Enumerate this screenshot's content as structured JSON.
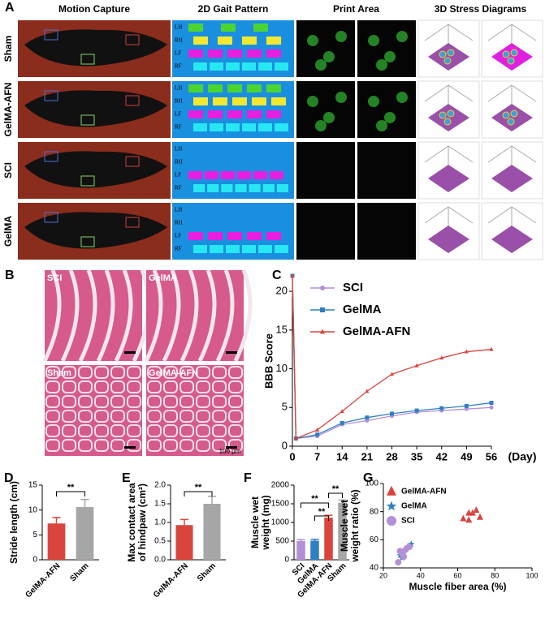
{
  "panel_a": {
    "label": "A",
    "columns": [
      "Motion Capture",
      "2D Gait Pattern",
      "Print Area",
      "3D Stress Diagrams"
    ],
    "rows": [
      "Sham",
      "GelMA-AFN",
      "SCI",
      "GelMA"
    ],
    "gait_limbs": [
      "LH",
      "RH",
      "LF",
      "RF"
    ]
  },
  "panel_b": {
    "label": "B",
    "images": [
      "SCI",
      "GelMA",
      "Sham",
      "GelMA-AFN"
    ],
    "scale_bar": "100 μm"
  },
  "chart_data": [
    {
      "type": "line",
      "panel": "C",
      "ylabel": "BBB Score",
      "xlabel": "(Day)",
      "x": [
        0,
        1,
        7,
        14,
        21,
        28,
        35,
        42,
        49,
        56
      ],
      "xlim": [
        0,
        56
      ],
      "xticks": [
        0,
        7,
        14,
        21,
        28,
        35,
        42,
        49,
        56
      ],
      "ylim": [
        0,
        22
      ],
      "yticks": [
        0,
        5,
        10,
        15,
        20
      ],
      "legend": "upper-left",
      "series": [
        {
          "name": "SCI",
          "color": "#b48fd6",
          "marker": "circle",
          "values": [
            22,
            1,
            1.3,
            2.8,
            3.3,
            3.9,
            4.4,
            4.6,
            4.8,
            5.0
          ]
        },
        {
          "name": "GelMA",
          "color": "#2f7fc1",
          "marker": "square",
          "values": [
            22,
            1,
            1.5,
            3.0,
            3.7,
            4.2,
            4.6,
            4.9,
            5.2,
            5.6
          ]
        },
        {
          "name": "GelMA-AFN",
          "color": "#d9453d",
          "marker": "triangle",
          "values": [
            22,
            1,
            2.1,
            4.5,
            7.1,
            9.3,
            10.4,
            11.4,
            12.2,
            12.5
          ]
        }
      ]
    },
    {
      "type": "bar",
      "panel": "D",
      "ylabel": [
        "Stride length (cm)"
      ],
      "categories": [
        "GelMA-AFN",
        "Sham"
      ],
      "values": [
        7.3,
        10.6
      ],
      "errors": [
        1.2,
        1.5
      ],
      "colors": [
        "#d9453d",
        "#a6a6a6"
      ],
      "ylim": [
        0,
        15
      ],
      "yticks": [
        0,
        5,
        10,
        15
      ],
      "significance": [
        "**"
      ]
    },
    {
      "type": "bar",
      "panel": "E",
      "ylabel": [
        "Max contact area",
        "of hindpaw (cm²)"
      ],
      "categories": [
        "GelMA-AFN",
        "Sham"
      ],
      "values": [
        0.93,
        1.5
      ],
      "errors": [
        0.15,
        0.2
      ],
      "colors": [
        "#d9453d",
        "#a6a6a6"
      ],
      "ylim": [
        0,
        2
      ],
      "yticks": [
        {
          "value": 0,
          "label": "0.0"
        },
        {
          "value": 0.5,
          "label": "0.5"
        },
        {
          "value": 1,
          "label": "1.0"
        },
        {
          "value": 1.5,
          "label": "1.5"
        },
        {
          "value": 2,
          "label": "2.0"
        }
      ],
      "significance": [
        "**"
      ]
    },
    {
      "type": "bar",
      "panel": "F",
      "ylabel": [
        "Muscle wet",
        "weight (mg)"
      ],
      "categories": [
        "SCI",
        "GelMA",
        "GelMA-AFN",
        "Sham"
      ],
      "values": [
        500,
        510,
        1130,
        1530
      ],
      "errors": [
        40,
        40,
        60,
        70
      ],
      "colors": [
        "#b48fd6",
        "#2f7fc1",
        "#d9453d",
        "#a6a6a6"
      ],
      "ylim": [
        0,
        2000
      ],
      "yticks": [
        0,
        500,
        1000,
        1500,
        2000
      ],
      "significance": [
        "**",
        "**",
        "**"
      ]
    },
    {
      "type": "scatter",
      "panel": "G",
      "xlabel": "Muscle fiber area (%)",
      "ylabel": [
        "Muscle wet",
        "weight ratio (%)"
      ],
      "xlim": [
        20,
        100
      ],
      "xticks": [
        20,
        40,
        60,
        80,
        100
      ],
      "ylim": [
        40,
        100
      ],
      "yticks": [
        40,
        60,
        80,
        100
      ],
      "legend": "upper-left",
      "series": [
        {
          "name": "GelMA-AFN",
          "color": "#d9453d",
          "marker": "triangle",
          "x": [
            63,
            66,
            68,
            70,
            72,
            66
          ],
          "values": [
            75,
            74,
            79,
            81,
            76,
            79
          ]
        },
        {
          "name": "GelMA",
          "color": "#2f7fc1",
          "marker": "star",
          "x": [
            29,
            30,
            33,
            35,
            31
          ],
          "values": [
            49,
            47,
            55,
            57,
            52
          ]
        },
        {
          "name": "SCI",
          "color": "#b48fd6",
          "marker": "circle",
          "x": [
            28,
            30,
            32,
            34,
            31,
            29
          ],
          "values": [
            44,
            50,
            53,
            55,
            48,
            52
          ]
        }
      ]
    }
  ]
}
